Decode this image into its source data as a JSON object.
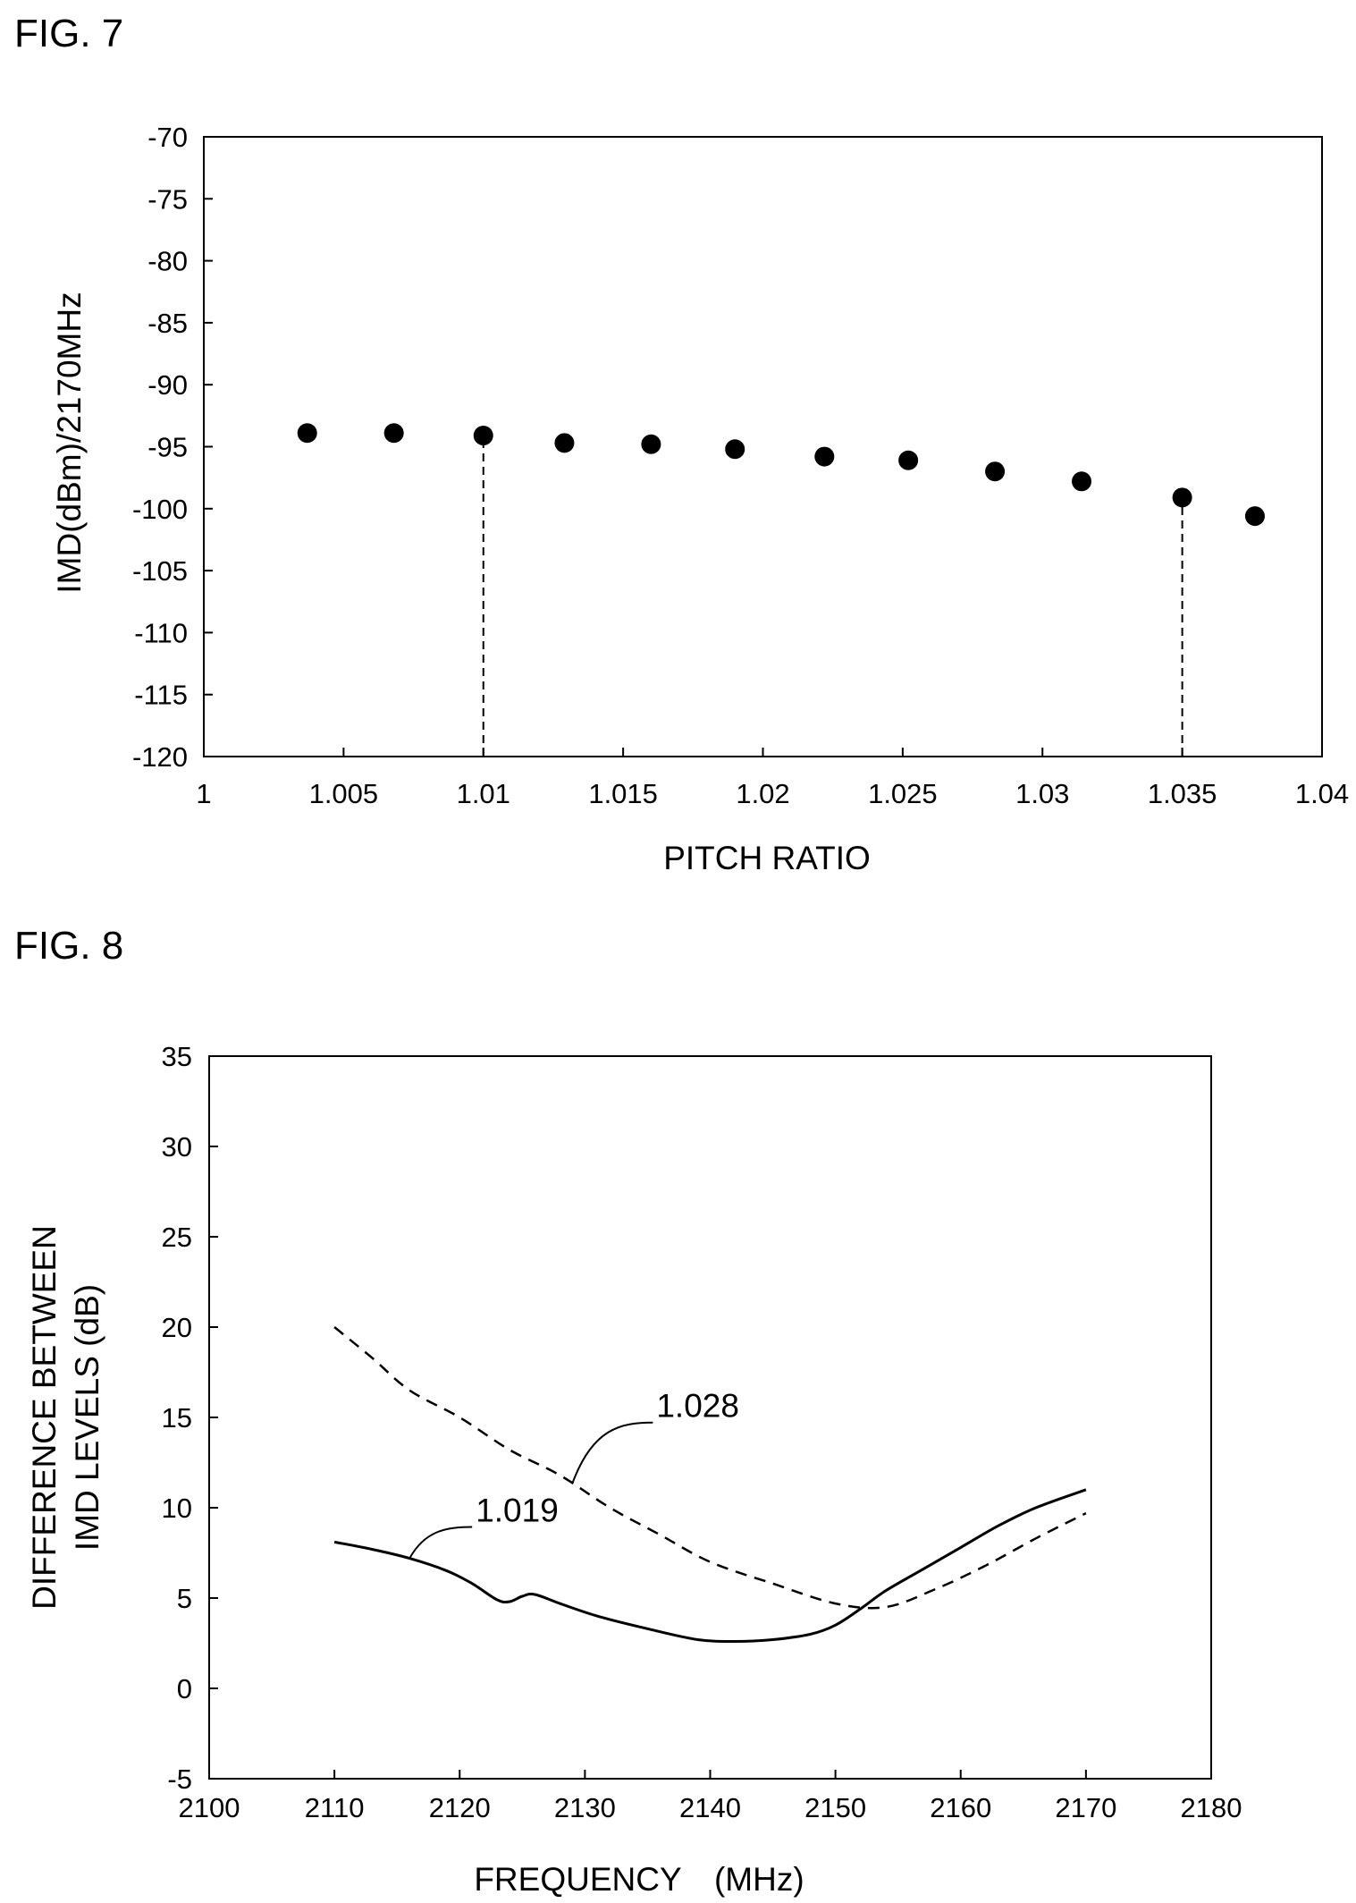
{
  "figures": [
    {
      "label": "FIG. 7",
      "chart_data": {
        "type": "scatter",
        "title": "",
        "xlabel": "PITCH RATIO",
        "ylabel": "IMD(dBm)/2170MHz",
        "xlim": [
          1,
          1.04
        ],
        "ylim": [
          -120,
          -70
        ],
        "x_ticks": [
          "1",
          "1.005",
          "1.01",
          "1.015",
          "1.02",
          "1.025",
          "1.03",
          "1.035",
          "1.04"
        ],
        "y_ticks": [
          "-70",
          "-75",
          "-80",
          "-85",
          "-90",
          "-95",
          "-100",
          "-105",
          "-110",
          "-115",
          "-120"
        ],
        "grid": false,
        "series": [
          {
            "points": [
              {
                "x": 1.0037,
                "y": -93.9
              },
              {
                "x": 1.0068,
                "y": -93.9
              },
              {
                "x": 1.01,
                "y": -94.1
              },
              {
                "x": 1.0129,
                "y": -94.7
              },
              {
                "x": 1.016,
                "y": -94.8
              },
              {
                "x": 1.019,
                "y": -95.2
              },
              {
                "x": 1.0222,
                "y": -95.8
              },
              {
                "x": 1.0252,
                "y": -96.1
              },
              {
                "x": 1.0283,
                "y": -97.0
              },
              {
                "x": 1.0314,
                "y": -97.8
              },
              {
                "x": 1.035,
                "y": -99.1
              },
              {
                "x": 1.0376,
                "y": -100.6
              }
            ]
          }
        ],
        "reference_lines": [
          {
            "x": 1.01,
            "from_y": -120,
            "to_y": -94.1,
            "style": "dashed"
          },
          {
            "x": 1.035,
            "from_y": -120,
            "to_y": -99.1,
            "style": "dashed"
          }
        ]
      }
    },
    {
      "label": "FIG. 8",
      "chart_data": {
        "type": "line",
        "title": "",
        "xlabel": "FREQUENCY　(MHz)",
        "ylabel_lines": [
          "DIFFERENCE BETWEEN",
          "IMD LEVELS (dB)"
        ],
        "xlim": [
          2100,
          2180
        ],
        "ylim": [
          -5,
          35
        ],
        "x_ticks": [
          "2100",
          "2110",
          "2120",
          "2130",
          "2140",
          "2150",
          "2160",
          "2170",
          "2180"
        ],
        "y_ticks": [
          "35",
          "30",
          "25",
          "20",
          "15",
          "10",
          "5",
          "0",
          "-5"
        ],
        "grid": false,
        "series": [
          {
            "name": "1.028",
            "style": "dashed",
            "x": [
              2110,
              2113,
              2116,
              2120,
              2124,
              2128,
              2132,
              2136,
              2140,
              2145,
              2150,
              2154,
              2158,
              2162,
              2166,
              2170
            ],
            "y": [
              20.0,
              18.3,
              16.5,
              15.0,
              13.2,
              11.8,
              10.0,
              8.5,
              7.0,
              5.8,
              4.7,
              4.5,
              5.5,
              6.8,
              8.3,
              9.7
            ]
          },
          {
            "name": "1.019",
            "style": "solid",
            "x": [
              2110,
              2113,
              2116,
              2119,
              2121,
              2123,
              2124,
              2125,
              2126,
              2128,
              2131,
              2135,
              2139,
              2142,
              2145,
              2148,
              2150,
              2152,
              2154,
              2157,
              2160,
              2163,
              2166,
              2170
            ],
            "y": [
              8.1,
              7.7,
              7.2,
              6.5,
              5.8,
              4.9,
              4.8,
              5.1,
              5.2,
              4.7,
              4.0,
              3.3,
              2.7,
              2.6,
              2.7,
              3.0,
              3.5,
              4.4,
              5.4,
              6.6,
              7.8,
              9.0,
              10.0,
              11.0
            ]
          }
        ],
        "annotations": [
          {
            "text": "1.028",
            "series": "1.028",
            "at_x": 2129
          },
          {
            "text": "1.019",
            "series": "1.019",
            "at_x": 2116
          }
        ]
      }
    }
  ]
}
